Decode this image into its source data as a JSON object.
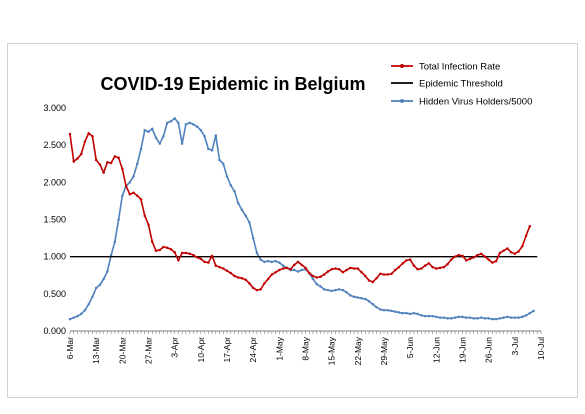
{
  "chart_data": {
    "type": "line",
    "title": "COVID-19 Epidemic in Belgium",
    "xlabel": "",
    "ylabel": "",
    "ylim": [
      0,
      3
    ],
    "y_ticks": [
      "0.000",
      "0.500",
      "1.000",
      "1.500",
      "2.000",
      "2.500",
      "3.000"
    ],
    "x_tick_labels": [
      "6-Mar",
      "13-Mar",
      "20-Mar",
      "27-Mar",
      "3-Apr",
      "10-Apr",
      "17-Apr",
      "24-Apr",
      "1-May",
      "8-May",
      "15-May",
      "22-May",
      "29-May",
      "5-Jun",
      "12-Jun",
      "19-Jun",
      "26-Jun",
      "3-Jul",
      "10-Jul"
    ],
    "x_start": "2020-03-06",
    "x_end": "2020-07-10",
    "grid": false,
    "legend_position": "top-right",
    "series": [
      {
        "name": "Total Infection Rate",
        "color": "#C00000",
        "marker": "dot",
        "points": [
          [
            "2020-03-06",
            2.65
          ],
          [
            "2020-03-07",
            2.28
          ],
          [
            "2020-03-08",
            2.32
          ],
          [
            "2020-03-09",
            2.38
          ],
          [
            "2020-03-10",
            2.55
          ],
          [
            "2020-03-11",
            2.66
          ],
          [
            "2020-03-12",
            2.62
          ],
          [
            "2020-03-13",
            2.3
          ],
          [
            "2020-03-14",
            2.24
          ],
          [
            "2020-03-15",
            2.13
          ],
          [
            "2020-03-16",
            2.27
          ],
          [
            "2020-03-17",
            2.26
          ],
          [
            "2020-03-18",
            2.35
          ],
          [
            "2020-03-19",
            2.33
          ],
          [
            "2020-03-20",
            2.18
          ],
          [
            "2020-03-21",
            1.95
          ],
          [
            "2020-03-22",
            1.84
          ],
          [
            "2020-03-23",
            1.86
          ],
          [
            "2020-03-24",
            1.82
          ],
          [
            "2020-03-25",
            1.77
          ],
          [
            "2020-03-26",
            1.55
          ],
          [
            "2020-03-27",
            1.43
          ],
          [
            "2020-03-28",
            1.2
          ],
          [
            "2020-03-29",
            1.08
          ],
          [
            "2020-03-30",
            1.09
          ],
          [
            "2020-03-31",
            1.13
          ],
          [
            "2020-04-01",
            1.12
          ],
          [
            "2020-04-02",
            1.1
          ],
          [
            "2020-04-03",
            1.06
          ],
          [
            "2020-04-04",
            0.95
          ],
          [
            "2020-04-05",
            1.05
          ],
          [
            "2020-04-06",
            1.05
          ],
          [
            "2020-04-07",
            1.04
          ],
          [
            "2020-04-08",
            1.02
          ],
          [
            "2020-04-09",
            0.99
          ],
          [
            "2020-04-10",
            0.97
          ],
          [
            "2020-04-11",
            0.93
          ],
          [
            "2020-04-12",
            0.92
          ],
          [
            "2020-04-13",
            1.01
          ],
          [
            "2020-04-14",
            0.88
          ],
          [
            "2020-04-15",
            0.86
          ],
          [
            "2020-04-16",
            0.84
          ],
          [
            "2020-04-17",
            0.81
          ],
          [
            "2020-04-18",
            0.78
          ],
          [
            "2020-04-19",
            0.74
          ],
          [
            "2020-04-20",
            0.72
          ],
          [
            "2020-04-21",
            0.71
          ],
          [
            "2020-04-22",
            0.69
          ],
          [
            "2020-04-23",
            0.64
          ],
          [
            "2020-04-24",
            0.58
          ],
          [
            "2020-04-25",
            0.55
          ],
          [
            "2020-04-26",
            0.56
          ],
          [
            "2020-04-27",
            0.64
          ],
          [
            "2020-04-28",
            0.7
          ],
          [
            "2020-04-29",
            0.76
          ],
          [
            "2020-04-30",
            0.79
          ],
          [
            "2020-05-01",
            0.82
          ],
          [
            "2020-05-02",
            0.84
          ],
          [
            "2020-05-03",
            0.85
          ],
          [
            "2020-05-04",
            0.83
          ],
          [
            "2020-05-05",
            0.89
          ],
          [
            "2020-05-06",
            0.93
          ],
          [
            "2020-05-07",
            0.89
          ],
          [
            "2020-05-08",
            0.85
          ],
          [
            "2020-05-09",
            0.78
          ],
          [
            "2020-05-10",
            0.74
          ],
          [
            "2020-05-11",
            0.72
          ],
          [
            "2020-05-12",
            0.73
          ],
          [
            "2020-05-13",
            0.76
          ],
          [
            "2020-05-14",
            0.8
          ],
          [
            "2020-05-15",
            0.83
          ],
          [
            "2020-05-16",
            0.84
          ],
          [
            "2020-05-17",
            0.83
          ],
          [
            "2020-05-18",
            0.79
          ],
          [
            "2020-05-19",
            0.82
          ],
          [
            "2020-05-20",
            0.85
          ],
          [
            "2020-05-21",
            0.84
          ],
          [
            "2020-05-22",
            0.84
          ],
          [
            "2020-05-23",
            0.79
          ],
          [
            "2020-05-24",
            0.74
          ],
          [
            "2020-05-25",
            0.68
          ],
          [
            "2020-05-26",
            0.66
          ],
          [
            "2020-05-27",
            0.71
          ],
          [
            "2020-05-28",
            0.77
          ],
          [
            "2020-05-29",
            0.76
          ],
          [
            "2020-05-30",
            0.76
          ],
          [
            "2020-05-31",
            0.77
          ],
          [
            "2020-06-01",
            0.82
          ],
          [
            "2020-06-02",
            0.86
          ],
          [
            "2020-06-03",
            0.91
          ],
          [
            "2020-06-04",
            0.95
          ],
          [
            "2020-06-05",
            0.96
          ],
          [
            "2020-06-06",
            0.88
          ],
          [
            "2020-06-07",
            0.83
          ],
          [
            "2020-06-08",
            0.84
          ],
          [
            "2020-06-09",
            0.88
          ],
          [
            "2020-06-10",
            0.91
          ],
          [
            "2020-06-11",
            0.86
          ],
          [
            "2020-06-12",
            0.84
          ],
          [
            "2020-06-13",
            0.85
          ],
          [
            "2020-06-14",
            0.86
          ],
          [
            "2020-06-15",
            0.9
          ],
          [
            "2020-06-16",
            0.96
          ],
          [
            "2020-06-17",
            1.0
          ],
          [
            "2020-06-18",
            1.02
          ],
          [
            "2020-06-19",
            1.01
          ],
          [
            "2020-06-20",
            0.95
          ],
          [
            "2020-06-21",
            0.97
          ],
          [
            "2020-06-22",
            0.99
          ],
          [
            "2020-06-23",
            1.02
          ],
          [
            "2020-06-24",
            1.04
          ],
          [
            "2020-06-25",
            1.0
          ],
          [
            "2020-06-26",
            0.96
          ],
          [
            "2020-06-27",
            0.92
          ],
          [
            "2020-06-28",
            0.94
          ],
          [
            "2020-06-29",
            1.05
          ],
          [
            "2020-06-30",
            1.08
          ],
          [
            "2020-07-01",
            1.11
          ],
          [
            "2020-07-02",
            1.06
          ],
          [
            "2020-07-03",
            1.04
          ],
          [
            "2020-07-04",
            1.07
          ],
          [
            "2020-07-05",
            1.14
          ],
          [
            "2020-07-06",
            1.28
          ],
          [
            "2020-07-07",
            1.41
          ]
        ]
      },
      {
        "name": "Epidemic Threshold",
        "color": "#000000",
        "marker": "none",
        "points": [
          [
            "2020-03-06",
            1.0
          ],
          [
            "2020-07-09",
            1.0
          ]
        ]
      },
      {
        "name": "Hidden Virus Holders/5000",
        "color": "#4F81BD",
        "marker": "dot",
        "points": [
          [
            "2020-03-06",
            0.16
          ],
          [
            "2020-03-07",
            0.18
          ],
          [
            "2020-03-08",
            0.2
          ],
          [
            "2020-03-09",
            0.23
          ],
          [
            "2020-03-10",
            0.28
          ],
          [
            "2020-03-11",
            0.36
          ],
          [
            "2020-03-12",
            0.46
          ],
          [
            "2020-03-13",
            0.58
          ],
          [
            "2020-03-14",
            0.62
          ],
          [
            "2020-03-15",
            0.7
          ],
          [
            "2020-03-16",
            0.8
          ],
          [
            "2020-03-17",
            1.02
          ],
          [
            "2020-03-18",
            1.2
          ],
          [
            "2020-03-19",
            1.5
          ],
          [
            "2020-03-20",
            1.82
          ],
          [
            "2020-03-21",
            1.95
          ],
          [
            "2020-03-22",
            2.0
          ],
          [
            "2020-03-23",
            2.08
          ],
          [
            "2020-03-24",
            2.25
          ],
          [
            "2020-03-25",
            2.45
          ],
          [
            "2020-03-26",
            2.7
          ],
          [
            "2020-03-27",
            2.68
          ],
          [
            "2020-03-28",
            2.72
          ],
          [
            "2020-03-29",
            2.6
          ],
          [
            "2020-03-30",
            2.52
          ],
          [
            "2020-03-31",
            2.62
          ],
          [
            "2020-04-01",
            2.8
          ],
          [
            "2020-04-02",
            2.82
          ],
          [
            "2020-04-03",
            2.86
          ],
          [
            "2020-04-04",
            2.8
          ],
          [
            "2020-04-05",
            2.52
          ],
          [
            "2020-04-06",
            2.78
          ],
          [
            "2020-04-07",
            2.8
          ],
          [
            "2020-04-08",
            2.78
          ],
          [
            "2020-04-09",
            2.75
          ],
          [
            "2020-04-10",
            2.7
          ],
          [
            "2020-04-11",
            2.62
          ],
          [
            "2020-04-12",
            2.45
          ],
          [
            "2020-04-13",
            2.43
          ],
          [
            "2020-04-14",
            2.63
          ],
          [
            "2020-04-15",
            2.3
          ],
          [
            "2020-04-16",
            2.25
          ],
          [
            "2020-04-17",
            2.08
          ],
          [
            "2020-04-18",
            1.96
          ],
          [
            "2020-04-19",
            1.88
          ],
          [
            "2020-04-20",
            1.72
          ],
          [
            "2020-04-21",
            1.63
          ],
          [
            "2020-04-22",
            1.55
          ],
          [
            "2020-04-23",
            1.46
          ],
          [
            "2020-04-24",
            1.25
          ],
          [
            "2020-04-25",
            1.05
          ],
          [
            "2020-04-26",
            0.96
          ],
          [
            "2020-04-27",
            0.93
          ],
          [
            "2020-04-28",
            0.94
          ],
          [
            "2020-04-29",
            0.93
          ],
          [
            "2020-04-30",
            0.94
          ],
          [
            "2020-05-01",
            0.92
          ],
          [
            "2020-05-02",
            0.88
          ],
          [
            "2020-05-03",
            0.85
          ],
          [
            "2020-05-04",
            0.82
          ],
          [
            "2020-05-05",
            0.82
          ],
          [
            "2020-05-06",
            0.8
          ],
          [
            "2020-05-07",
            0.82
          ],
          [
            "2020-05-08",
            0.83
          ],
          [
            "2020-05-09",
            0.78
          ],
          [
            "2020-05-10",
            0.7
          ],
          [
            "2020-05-11",
            0.63
          ],
          [
            "2020-05-12",
            0.6
          ],
          [
            "2020-05-13",
            0.56
          ],
          [
            "2020-05-14",
            0.55
          ],
          [
            "2020-05-15",
            0.54
          ],
          [
            "2020-05-16",
            0.55
          ],
          [
            "2020-05-17",
            0.56
          ],
          [
            "2020-05-18",
            0.55
          ],
          [
            "2020-05-19",
            0.52
          ],
          [
            "2020-05-20",
            0.48
          ],
          [
            "2020-05-21",
            0.46
          ],
          [
            "2020-05-22",
            0.45
          ],
          [
            "2020-05-23",
            0.44
          ],
          [
            "2020-05-24",
            0.43
          ],
          [
            "2020-05-25",
            0.4
          ],
          [
            "2020-05-26",
            0.36
          ],
          [
            "2020-05-27",
            0.32
          ],
          [
            "2020-05-28",
            0.29
          ],
          [
            "2020-05-29",
            0.28
          ],
          [
            "2020-05-30",
            0.28
          ],
          [
            "2020-05-31",
            0.27
          ],
          [
            "2020-06-01",
            0.26
          ],
          [
            "2020-06-02",
            0.25
          ],
          [
            "2020-06-03",
            0.24
          ],
          [
            "2020-06-04",
            0.24
          ],
          [
            "2020-06-05",
            0.23
          ],
          [
            "2020-06-06",
            0.24
          ],
          [
            "2020-06-07",
            0.23
          ],
          [
            "2020-06-08",
            0.21
          ],
          [
            "2020-06-09",
            0.2
          ],
          [
            "2020-06-10",
            0.2
          ],
          [
            "2020-06-11",
            0.2
          ],
          [
            "2020-06-12",
            0.19
          ],
          [
            "2020-06-13",
            0.18
          ],
          [
            "2020-06-14",
            0.18
          ],
          [
            "2020-06-15",
            0.17
          ],
          [
            "2020-06-16",
            0.17
          ],
          [
            "2020-06-17",
            0.18
          ],
          [
            "2020-06-18",
            0.19
          ],
          [
            "2020-06-19",
            0.19
          ],
          [
            "2020-06-20",
            0.18
          ],
          [
            "2020-06-21",
            0.18
          ],
          [
            "2020-06-22",
            0.17
          ],
          [
            "2020-06-23",
            0.17
          ],
          [
            "2020-06-24",
            0.18
          ],
          [
            "2020-06-25",
            0.17
          ],
          [
            "2020-06-26",
            0.17
          ],
          [
            "2020-06-27",
            0.16
          ],
          [
            "2020-06-28",
            0.16
          ],
          [
            "2020-06-29",
            0.17
          ],
          [
            "2020-06-30",
            0.18
          ],
          [
            "2020-07-01",
            0.19
          ],
          [
            "2020-07-02",
            0.18
          ],
          [
            "2020-07-03",
            0.18
          ],
          [
            "2020-07-04",
            0.18
          ],
          [
            "2020-07-05",
            0.19
          ],
          [
            "2020-07-06",
            0.21
          ],
          [
            "2020-07-07",
            0.24
          ],
          [
            "2020-07-08",
            0.27
          ]
        ]
      }
    ]
  }
}
